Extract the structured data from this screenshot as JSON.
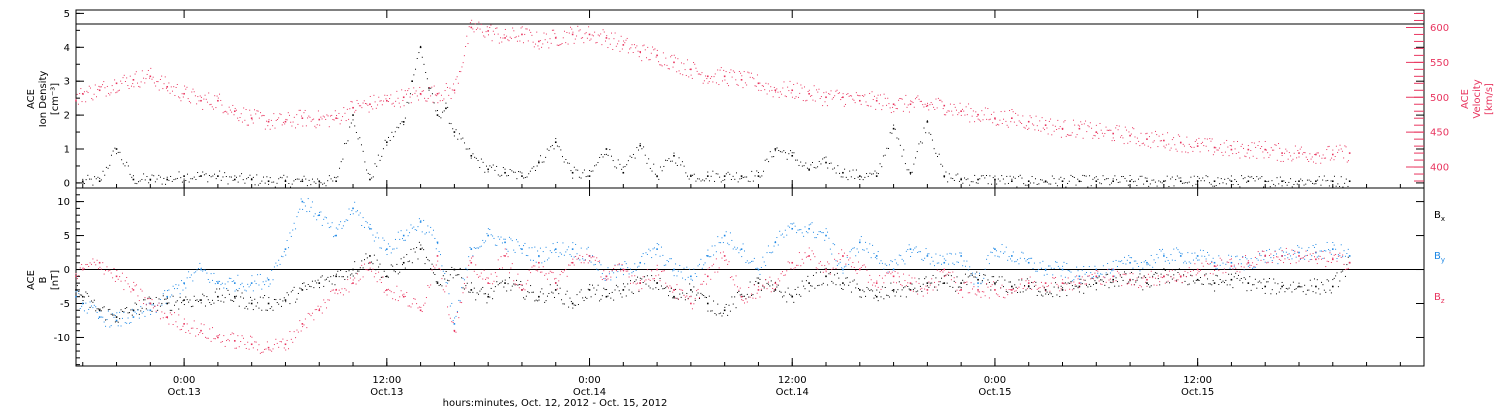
{
  "chart_data": [
    {
      "type": "scatter",
      "panel": "top",
      "title": "",
      "ylabel_left": [
        "ACE",
        "Ion Density",
        "[cm⁻³]"
      ],
      "ylabel_right": [
        "ACE",
        "Velocity",
        "[km/s]"
      ],
      "xlabel": "hours:minutes, Oct. 12, 2012 - Oct. 15, 2012",
      "x_units": "hours since 2012-10-12 00:00 UT",
      "xlim": [
        17.6,
        97.4
      ],
      "ylim_left": [
        -0.15,
        5.1
      ],
      "ylim_right": [
        370,
        625
      ],
      "y_ticks_left": [
        "0",
        "1",
        "2",
        "3",
        "4",
        "5"
      ],
      "y_ticks_right": [
        "400",
        "450",
        "500",
        "550",
        "600"
      ],
      "series": [
        {
          "axis": "left",
          "color": "#000000",
          "x": [
            18,
            19,
            20,
            21,
            22,
            23,
            24,
            25,
            26,
            27,
            28,
            29,
            30,
            31,
            32,
            33,
            34,
            35,
            36,
            37,
            37.5,
            38,
            38.5,
            39,
            39.5,
            40,
            41,
            42,
            43,
            44,
            45,
            46,
            47,
            48,
            49,
            50,
            51,
            52,
            53,
            54,
            55,
            56,
            57,
            58,
            59,
            60,
            61,
            62,
            63,
            64,
            65,
            66,
            67,
            68,
            69,
            70,
            71,
            72,
            73,
            74,
            75,
            76,
            77,
            78,
            79,
            80,
            81,
            82,
            83,
            84,
            85,
            86,
            87,
            88,
            89,
            90,
            91,
            92,
            93
          ],
          "y": [
            0.05,
            0.05,
            1.0,
            0.1,
            0.1,
            0.1,
            0.2,
            0.2,
            0.2,
            0.1,
            0.1,
            0.05,
            0.05,
            0.05,
            0.05,
            0.05,
            2.0,
            0.1,
            1.2,
            1.8,
            3.0,
            4.0,
            2.8,
            2.0,
            2.2,
            1.5,
            0.8,
            0.4,
            0.3,
            0.2,
            0.6,
            1.2,
            0.3,
            0.2,
            1.0,
            0.3,
            1.1,
            0.2,
            0.8,
            0.2,
            0.2,
            0.2,
            0.2,
            0.2,
            1.0,
            0.8,
            0.4,
            0.6,
            0.3,
            0.2,
            0.2,
            1.6,
            0.3,
            1.8,
            0.2,
            0.1,
            0.1,
            0.1,
            0.05,
            0.05,
            0.05,
            0.05,
            0.05,
            0.05,
            0.05,
            0.05,
            0.05,
            0.05,
            0.05,
            0.05,
            0.05,
            0.05,
            0.05,
            0.05,
            0.05,
            0.05,
            0.05,
            0.05,
            0.05
          ]
        },
        {
          "axis": "right",
          "color": "#e8355f",
          "x": [
            17.6,
            18,
            19,
            20,
            21,
            22,
            23,
            24,
            25,
            26,
            27,
            28,
            29,
            30,
            31,
            32,
            33,
            34,
            35,
            36,
            37,
            38,
            39,
            40,
            41,
            42,
            43,
            44,
            45,
            46,
            47,
            48,
            49,
            50,
            51,
            52,
            53,
            54,
            55,
            56,
            57,
            58,
            59,
            60,
            61,
            62,
            63,
            64,
            65,
            66,
            67,
            68,
            69,
            70,
            71,
            72,
            73,
            74,
            75,
            76,
            77,
            78,
            79,
            80,
            81,
            82,
            83,
            84,
            85,
            86,
            87,
            88,
            89,
            90,
            91,
            92,
            93
          ],
          "y": [
            495,
            505,
            510,
            520,
            525,
            530,
            515,
            505,
            495,
            495,
            480,
            470,
            465,
            465,
            470,
            468,
            470,
            485,
            490,
            495,
            500,
            505,
            505,
            510,
            600,
            595,
            585,
            590,
            580,
            585,
            590,
            590,
            585,
            575,
            565,
            560,
            550,
            540,
            530,
            530,
            525,
            520,
            510,
            510,
            505,
            500,
            500,
            495,
            495,
            490,
            490,
            488,
            488,
            480,
            475,
            470,
            470,
            465,
            460,
            455,
            455,
            450,
            448,
            445,
            440,
            438,
            435,
            430,
            428,
            425,
            425,
            425,
            420,
            420,
            418,
            418,
            420
          ]
        }
      ]
    },
    {
      "type": "scatter",
      "panel": "bottom",
      "title": "",
      "ylabel_left": [
        "ACE",
        "B",
        "[nT]"
      ],
      "xlabel": "hours:minutes, Oct. 12, 2012 - Oct. 15, 2012",
      "x_units": "hours since 2012-10-12 00:00 UT",
      "xlim": [
        17.6,
        97.4
      ],
      "ylim": [
        -14.2,
        12.0
      ],
      "y_ticks": [
        "-10",
        "-5",
        "0",
        "5",
        "10"
      ],
      "zero_line": true,
      "series": [
        {
          "name": "Bx",
          "color": "#000000",
          "x": [
            17.6,
            18,
            19,
            20,
            21,
            22,
            23,
            24,
            25,
            26,
            27,
            28,
            29,
            30,
            31,
            32,
            33,
            34,
            35,
            36,
            37,
            38,
            39,
            40,
            41,
            42,
            43,
            44,
            45,
            46,
            47,
            48,
            49,
            50,
            51,
            52,
            53,
            54,
            55,
            56,
            57,
            58,
            59,
            60,
            61,
            62,
            63,
            64,
            65,
            66,
            67,
            68,
            69,
            70,
            71,
            72,
            73,
            74,
            75,
            76,
            77,
            78,
            79,
            80,
            81,
            82,
            83,
            84,
            85,
            86,
            87,
            88,
            89,
            90,
            91,
            92,
            93
          ],
          "y": [
            -3,
            -4,
            -6,
            -7,
            -6,
            -5,
            -5,
            -4.5,
            -4.5,
            -4,
            -4,
            -5,
            -5,
            -4.5,
            -3,
            -2,
            -1,
            0,
            2,
            -1,
            1,
            3,
            -2,
            0,
            -3,
            -4,
            -2,
            -3,
            -4,
            -3,
            -5,
            -3,
            -4,
            -3,
            -2,
            -2,
            -4,
            -3,
            -5,
            -6,
            -4,
            -2,
            -3,
            -4,
            -2,
            -1,
            -2,
            -3,
            -4,
            -3,
            -3,
            -2,
            -2,
            -2,
            -1.5,
            -2,
            -2.5,
            -2.5,
            -3,
            -3,
            -2.5,
            -2,
            -1.5,
            -1.5,
            -2,
            -1,
            -1,
            -1.5,
            -2,
            -1.5,
            -2,
            -2.5,
            -2.5,
            -2.5,
            -2.5,
            -2.5,
            1
          ]
        },
        {
          "name": "By",
          "color": "#1e88e5",
          "x": [
            17.6,
            18,
            19,
            20,
            21,
            22,
            23,
            24,
            25,
            26,
            27,
            28,
            29,
            30,
            31,
            32,
            33,
            34,
            35,
            36,
            37,
            38,
            39,
            40,
            41,
            42,
            43,
            44,
            45,
            46,
            47,
            48,
            49,
            50,
            51,
            52,
            53,
            54,
            55,
            56,
            57,
            58,
            59,
            60,
            61,
            62,
            63,
            64,
            65,
            66,
            67,
            68,
            69,
            70,
            71,
            72,
            73,
            74,
            75,
            76,
            77,
            78,
            79,
            80,
            81,
            82,
            83,
            84,
            85,
            86,
            87,
            88,
            89,
            90,
            91,
            92,
            93
          ],
          "y": [
            -4,
            -5,
            -7,
            -7.5,
            -7,
            -6,
            -4,
            -2,
            0,
            -2,
            -2,
            -2,
            -1.5,
            3,
            10,
            8,
            5,
            9,
            6,
            3,
            5,
            7,
            4,
            -8,
            3,
            5,
            4,
            3,
            2,
            3,
            3,
            2,
            -1,
            0,
            1,
            3,
            0,
            -1,
            2,
            5,
            3,
            0,
            4,
            6,
            6,
            5,
            0,
            4,
            2,
            0,
            3,
            2,
            1,
            2,
            -2,
            3,
            2,
            1,
            0,
            0,
            -1,
            0,
            0,
            1,
            1,
            2,
            2,
            2,
            1,
            1,
            1,
            2,
            2,
            2.5,
            2.5,
            3,
            2
          ]
        },
        {
          "name": "Bz",
          "color": "#e8355f",
          "x": [
            17.6,
            18,
            19,
            20,
            21,
            22,
            23,
            24,
            25,
            26,
            27,
            28,
            29,
            30,
            31,
            32,
            33,
            34,
            35,
            36,
            37,
            38,
            39,
            40,
            41,
            42,
            43,
            44,
            45,
            46,
            47,
            48,
            49,
            50,
            51,
            52,
            53,
            54,
            55,
            56,
            57,
            58,
            59,
            60,
            61,
            62,
            63,
            64,
            65,
            66,
            67,
            68,
            69,
            70,
            71,
            72,
            73,
            74,
            75,
            76,
            77,
            78,
            79,
            80,
            81,
            82,
            83,
            84,
            85,
            86,
            87,
            88,
            89,
            90,
            91,
            92,
            93
          ],
          "y": [
            -1,
            0,
            1,
            -1,
            -3,
            -5,
            -7,
            -8,
            -9,
            -10,
            -10.5,
            -11,
            -11.5,
            -11,
            -8,
            -6,
            -3,
            -2,
            1,
            -3,
            -4,
            -6,
            2,
            -9,
            1,
            -2,
            2,
            -3,
            1,
            -2,
            1,
            2,
            -1,
            0,
            -2,
            0,
            -3,
            -5,
            -1,
            2,
            -4,
            -3,
            -2,
            1,
            2,
            0,
            2,
            0,
            -2,
            -1,
            -2,
            -3,
            0,
            -3,
            -3,
            -3,
            -3,
            -2,
            -2,
            -2,
            -2,
            -1,
            -1,
            -1.5,
            -1.5,
            -1,
            -1,
            0,
            0.5,
            0.5,
            1,
            2,
            2,
            2,
            1.5,
            1.5,
            1
          ]
        }
      ]
    }
  ],
  "x_axis": {
    "ticks": [
      {
        "x": 24,
        "time": "0:00",
        "date": "Oct.13"
      },
      {
        "x": 36,
        "time": "12:00",
        "date": "Oct.13"
      },
      {
        "x": 48,
        "time": "0:00",
        "date": "Oct.14"
      },
      {
        "x": 60,
        "time": "12:00",
        "date": "Oct.14"
      },
      {
        "x": 72,
        "time": "0:00",
        "date": "Oct.15"
      },
      {
        "x": 84,
        "time": "12:00",
        "date": "Oct.15"
      }
    ],
    "label": "hours:minutes, Oct. 12, 2012 - Oct. 15, 2012"
  },
  "colors": {
    "density": "#000000",
    "velocity": "#e8355f",
    "bx": "#000000",
    "by": "#1e88e5",
    "bz": "#e8355f"
  }
}
